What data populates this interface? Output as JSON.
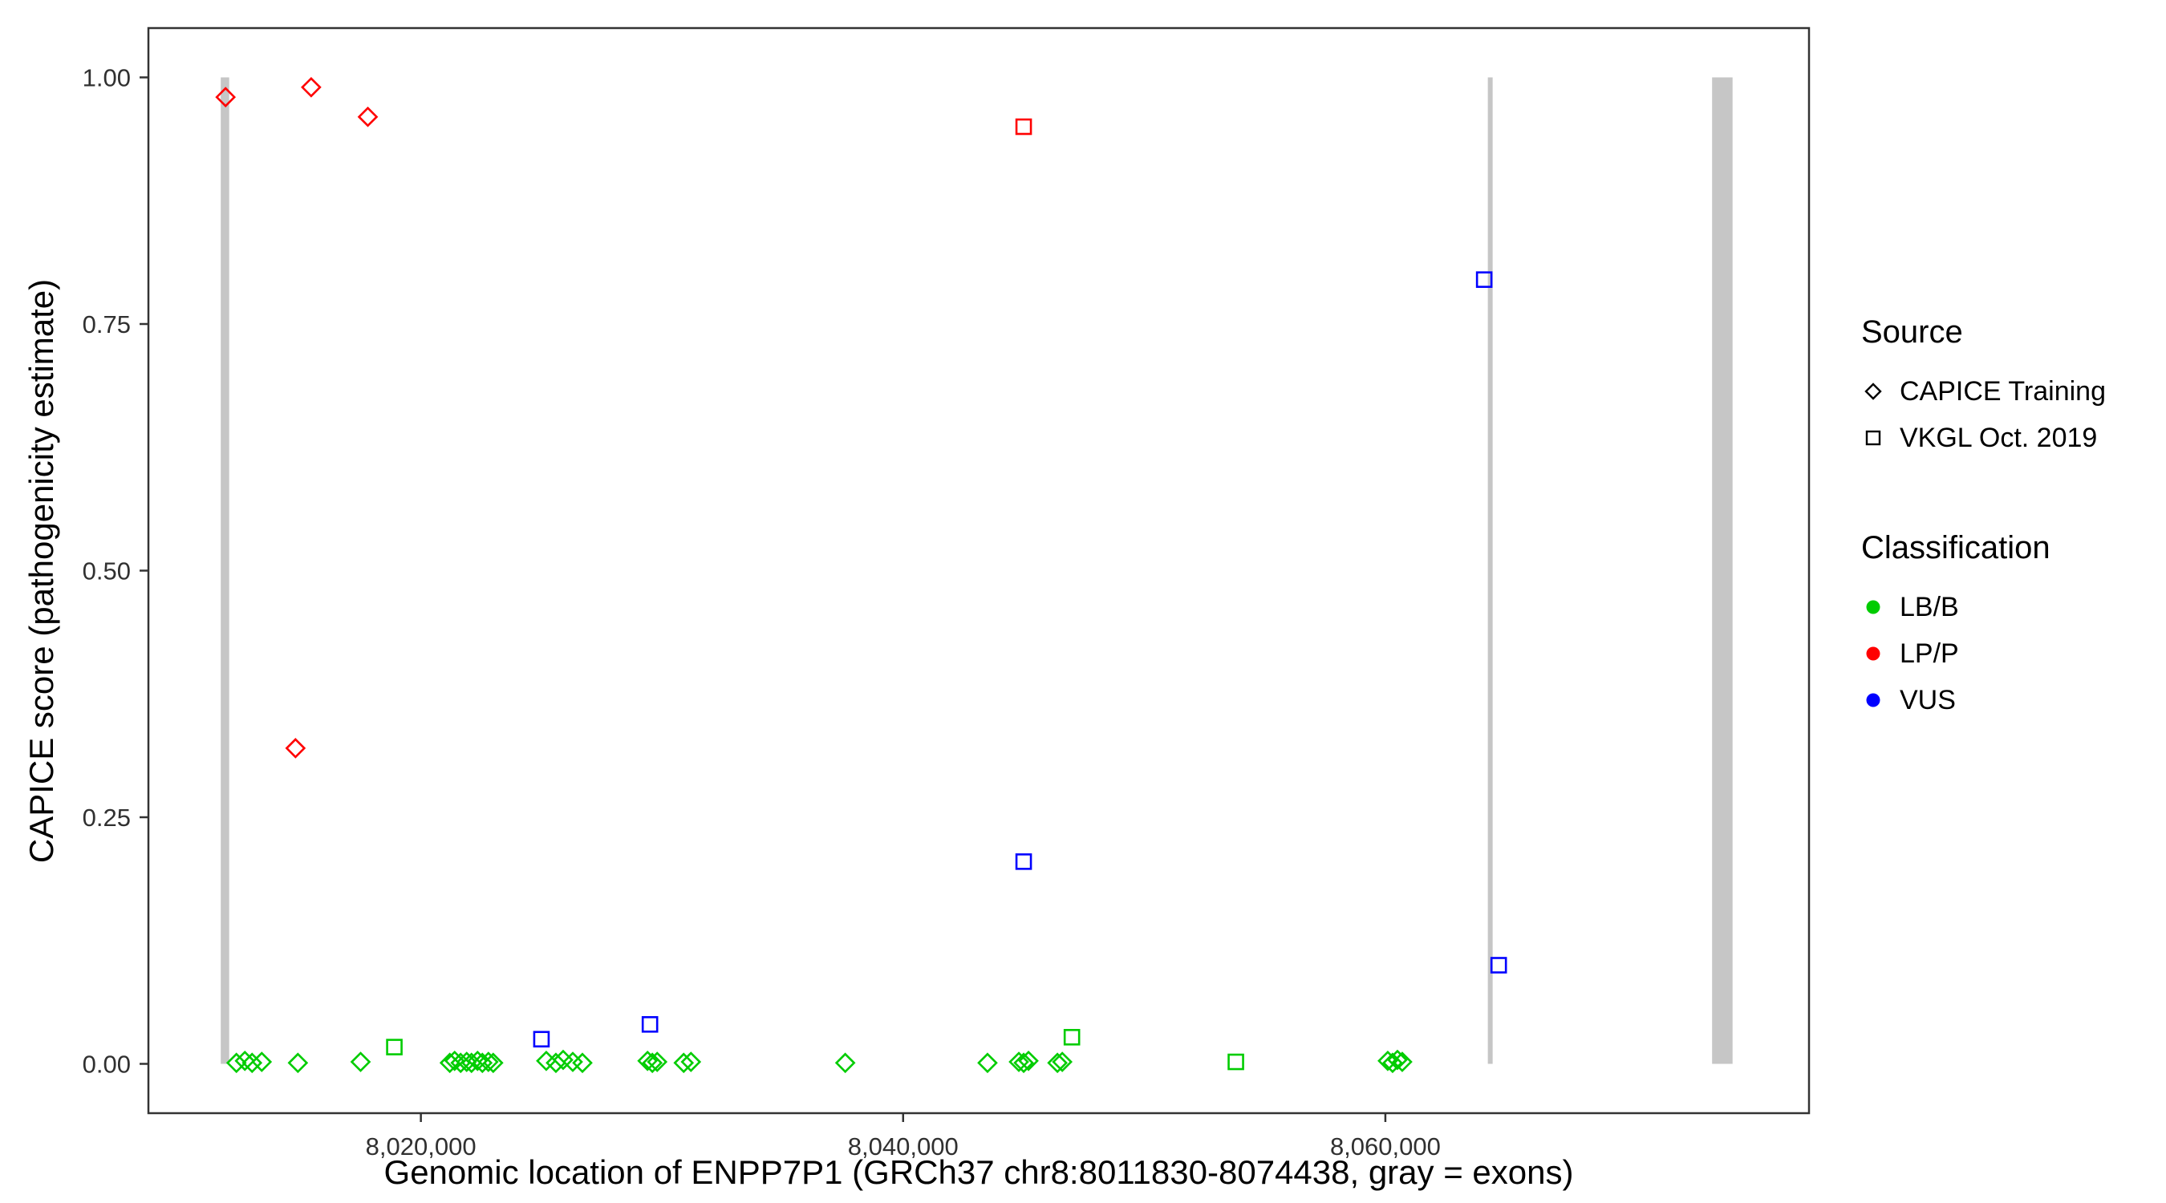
{
  "figure": {
    "xlabel": "Genomic location of ENPP7P1 (GRCh37 chr8:8011830-8074438, gray = exons)",
    "ylabel": "CAPICE score (pathogenicity estimate)"
  },
  "legend": {
    "source": {
      "title": "Source",
      "items": [
        {
          "label": "CAPICE Training",
          "shape": "diamond"
        },
        {
          "label": "VKGL Oct. 2019",
          "shape": "square"
        }
      ]
    },
    "classification": {
      "title": "Classification",
      "items": [
        {
          "label": "LB/B",
          "color": "#00CC00"
        },
        {
          "label": "LP/P",
          "color": "#FF0000"
        },
        {
          "label": "VUS",
          "color": "#0000FF"
        }
      ]
    }
  },
  "chart_data": {
    "type": "scatter",
    "title": "",
    "xlabel": "Genomic location of ENPP7P1 (GRCh37 chr8:8011830-8074438, gray = exons)",
    "ylabel": "CAPICE score (pathogenicity estimate)",
    "xlim": [
      8008700,
      8077570
    ],
    "ylim": [
      -0.05,
      1.05
    ],
    "grid": false,
    "legend_position": "right",
    "panel_border_color": "#333333",
    "tick_color": "#333333",
    "exon_color": "#C6C6C6",
    "colors": {
      "LB/B": "#00CC00",
      "LP/P": "#FF0000",
      "VUS": "#0000FF"
    },
    "source_shapes": {
      "CAPICE Training": "diamond",
      "VKGL Oct. 2019": "square"
    },
    "x_ticks": [
      {
        "value": 8020000,
        "label": "8,020,000"
      },
      {
        "value": 8040000,
        "label": "8,040,000"
      },
      {
        "value": 8060000,
        "label": "8,060,000"
      }
    ],
    "y_ticks": [
      {
        "value": 0.0,
        "label": "0.00"
      },
      {
        "value": 0.25,
        "label": "0.25"
      },
      {
        "value": 0.5,
        "label": "0.50"
      },
      {
        "value": 0.75,
        "label": "0.75"
      },
      {
        "value": 1.0,
        "label": "1.00"
      }
    ],
    "exons": [
      {
        "start": 8011700,
        "end": 8012050
      },
      {
        "start": 8064250,
        "end": 8064450
      },
      {
        "start": 8073550,
        "end": 8074400
      }
    ],
    "points": [
      {
        "x": 8011900,
        "y": 0.98,
        "cls": "LP/P",
        "source": "CAPICE Training"
      },
      {
        "x": 8015450,
        "y": 0.99,
        "cls": "LP/P",
        "source": "CAPICE Training"
      },
      {
        "x": 8017800,
        "y": 0.96,
        "cls": "LP/P",
        "source": "CAPICE Training"
      },
      {
        "x": 8014800,
        "y": 0.32,
        "cls": "LP/P",
        "source": "CAPICE Training"
      },
      {
        "x": 8045000,
        "y": 0.95,
        "cls": "LP/P",
        "source": "VKGL Oct. 2019"
      },
      {
        "x": 8064100,
        "y": 0.795,
        "cls": "VUS",
        "source": "VKGL Oct. 2019"
      },
      {
        "x": 8045000,
        "y": 0.205,
        "cls": "VUS",
        "source": "VKGL Oct. 2019"
      },
      {
        "x": 8064700,
        "y": 0.1,
        "cls": "VUS",
        "source": "VKGL Oct. 2019"
      },
      {
        "x": 8025000,
        "y": 0.025,
        "cls": "VUS",
        "source": "VKGL Oct. 2019"
      },
      {
        "x": 8029500,
        "y": 0.04,
        "cls": "VUS",
        "source": "VKGL Oct. 2019"
      },
      {
        "x": 8018900,
        "y": 0.017,
        "cls": "LB/B",
        "source": "VKGL Oct. 2019"
      },
      {
        "x": 8047000,
        "y": 0.027,
        "cls": "LB/B",
        "source": "VKGL Oct. 2019"
      },
      {
        "x": 8053800,
        "y": 0.002,
        "cls": "LB/B",
        "source": "VKGL Oct. 2019"
      },
      {
        "x": 8012350,
        "y": 0.001,
        "cls": "LB/B",
        "source": "CAPICE Training"
      },
      {
        "x": 8012700,
        "y": 0.003,
        "cls": "LB/B",
        "source": "CAPICE Training"
      },
      {
        "x": 8013000,
        "y": 0.001,
        "cls": "LB/B",
        "source": "CAPICE Training"
      },
      {
        "x": 8013400,
        "y": 0.002,
        "cls": "LB/B",
        "source": "CAPICE Training"
      },
      {
        "x": 8014900,
        "y": 0.001,
        "cls": "LB/B",
        "source": "CAPICE Training"
      },
      {
        "x": 8017500,
        "y": 0.002,
        "cls": "LB/B",
        "source": "CAPICE Training"
      },
      {
        "x": 8021200,
        "y": 0.001,
        "cls": "LB/B",
        "source": "CAPICE Training"
      },
      {
        "x": 8021400,
        "y": 0.003,
        "cls": "LB/B",
        "source": "CAPICE Training"
      },
      {
        "x": 8021650,
        "y": 0.001,
        "cls": "LB/B",
        "source": "CAPICE Training"
      },
      {
        "x": 8021900,
        "y": 0.002,
        "cls": "LB/B",
        "source": "CAPICE Training"
      },
      {
        "x": 8022100,
        "y": 0.001,
        "cls": "LB/B",
        "source": "CAPICE Training"
      },
      {
        "x": 8022350,
        "y": 0.003,
        "cls": "LB/B",
        "source": "CAPICE Training"
      },
      {
        "x": 8022550,
        "y": 0.001,
        "cls": "LB/B",
        "source": "CAPICE Training"
      },
      {
        "x": 8022800,
        "y": 0.002,
        "cls": "LB/B",
        "source": "CAPICE Training"
      },
      {
        "x": 8023000,
        "y": 0.001,
        "cls": "LB/B",
        "source": "CAPICE Training"
      },
      {
        "x": 8025200,
        "y": 0.003,
        "cls": "LB/B",
        "source": "CAPICE Training"
      },
      {
        "x": 8025600,
        "y": 0.001,
        "cls": "LB/B",
        "source": "CAPICE Training"
      },
      {
        "x": 8025900,
        "y": 0.004,
        "cls": "LB/B",
        "source": "CAPICE Training"
      },
      {
        "x": 8026300,
        "y": 0.002,
        "cls": "LB/B",
        "source": "CAPICE Training"
      },
      {
        "x": 8026700,
        "y": 0.001,
        "cls": "LB/B",
        "source": "CAPICE Training"
      },
      {
        "x": 8029400,
        "y": 0.003,
        "cls": "LB/B",
        "source": "CAPICE Training"
      },
      {
        "x": 8029600,
        "y": 0.001,
        "cls": "LB/B",
        "source": "CAPICE Training"
      },
      {
        "x": 8029800,
        "y": 0.002,
        "cls": "LB/B",
        "source": "CAPICE Training"
      },
      {
        "x": 8030900,
        "y": 0.001,
        "cls": "LB/B",
        "source": "CAPICE Training"
      },
      {
        "x": 8031200,
        "y": 0.002,
        "cls": "LB/B",
        "source": "CAPICE Training"
      },
      {
        "x": 8037600,
        "y": 0.001,
        "cls": "LB/B",
        "source": "CAPICE Training"
      },
      {
        "x": 8043500,
        "y": 0.001,
        "cls": "LB/B",
        "source": "CAPICE Training"
      },
      {
        "x": 8044800,
        "y": 0.002,
        "cls": "LB/B",
        "source": "CAPICE Training"
      },
      {
        "x": 8045000,
        "y": 0.001,
        "cls": "LB/B",
        "source": "CAPICE Training"
      },
      {
        "x": 8045200,
        "y": 0.003,
        "cls": "LB/B",
        "source": "CAPICE Training"
      },
      {
        "x": 8046400,
        "y": 0.001,
        "cls": "LB/B",
        "source": "CAPICE Training"
      },
      {
        "x": 8046600,
        "y": 0.002,
        "cls": "LB/B",
        "source": "CAPICE Training"
      },
      {
        "x": 8060100,
        "y": 0.003,
        "cls": "LB/B",
        "source": "CAPICE Training"
      },
      {
        "x": 8060300,
        "y": 0.001,
        "cls": "LB/B",
        "source": "CAPICE Training"
      },
      {
        "x": 8060500,
        "y": 0.004,
        "cls": "LB/B",
        "source": "CAPICE Training"
      },
      {
        "x": 8060700,
        "y": 0.002,
        "cls": "LB/B",
        "source": "CAPICE Training"
      }
    ]
  }
}
